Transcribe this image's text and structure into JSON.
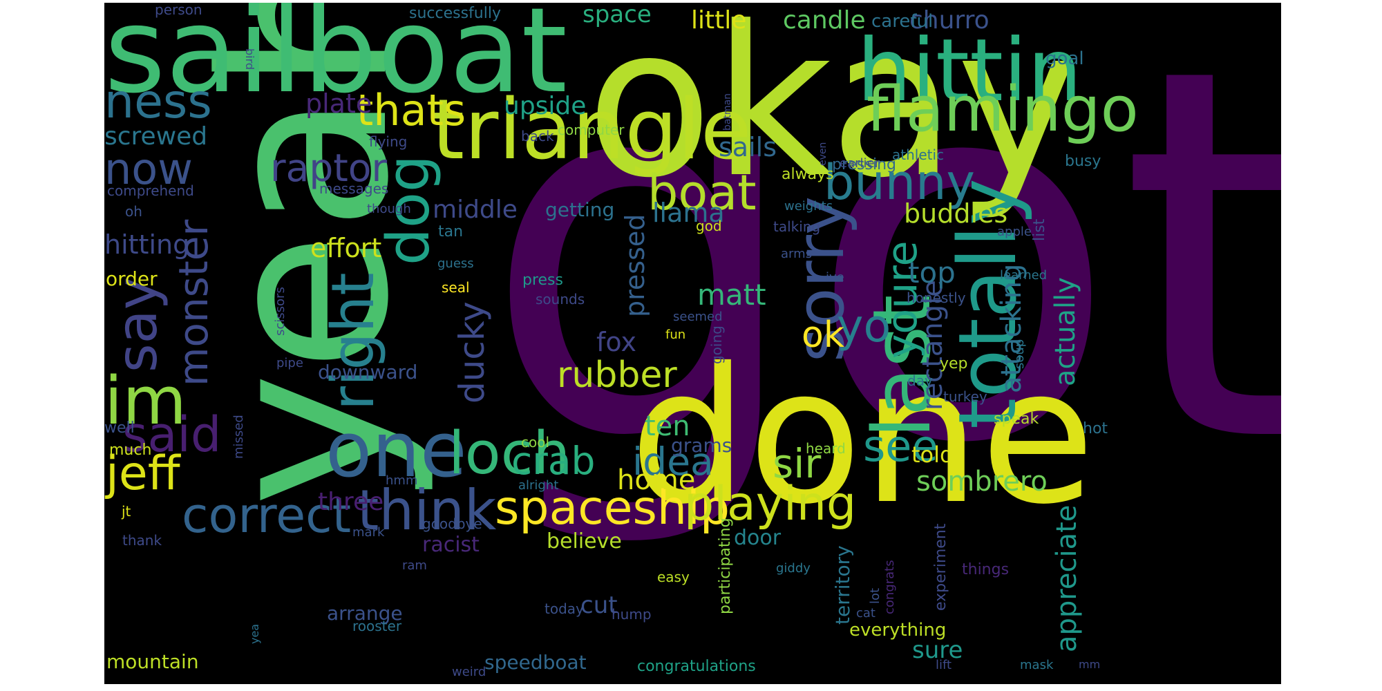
{
  "palette": [
    "#440154",
    "#3b528b",
    "#21918c",
    "#5ec962",
    "#fde725"
  ],
  "words": [
    {
      "text": "got",
      "size": 740,
      "color": "#440154",
      "rot": 0
    },
    {
      "text": "okay",
      "size": 300,
      "color": "#b5de2b",
      "rot": 0
    },
    {
      "text": "yeah",
      "size": 330,
      "color": "#4ac16d",
      "rot": -90
    },
    {
      "text": "done",
      "size": 270,
      "color": "#dde318",
      "rot": 0
    },
    {
      "text": "sailboat",
      "size": 170,
      "color": "#3fbc73",
      "rot": 0
    },
    {
      "text": "hittin",
      "size": 125,
      "color": "#2ab07f",
      "rot": 0
    },
    {
      "text": "triangle",
      "size": 120,
      "color": "#bddf26",
      "rot": 0
    },
    {
      "text": "flamingo",
      "size": 90,
      "color": "#6ece58",
      "rot": 0
    },
    {
      "text": "totally",
      "size": 115,
      "color": "#1f9a8a",
      "rot": -90
    },
    {
      "text": "last",
      "size": 115,
      "color": "#35b779",
      "rot": -90
    },
    {
      "text": "one",
      "size": 110,
      "color": "#34618d",
      "rot": 0
    },
    {
      "text": "sorry",
      "size": 95,
      "color": "#3b528b",
      "rot": -90
    },
    {
      "text": "right",
      "size": 85,
      "color": "#27808e",
      "rot": -90
    },
    {
      "text": "dog",
      "size": 85,
      "color": "#1fa287",
      "rot": -90
    },
    {
      "text": "im",
      "size": 95,
      "color": "#8fd744",
      "rot": 0
    },
    {
      "text": "loch",
      "size": 85,
      "color": "#35b779",
      "rot": 0
    },
    {
      "text": "spaceship",
      "size": 68,
      "color": "#fde725",
      "rot": 0
    },
    {
      "text": "playing",
      "size": 68,
      "color": "#cde11d",
      "rot": 0
    },
    {
      "text": "think",
      "size": 80,
      "color": "#3b528b",
      "rot": 0
    },
    {
      "text": "correct",
      "size": 70,
      "color": "#33638d",
      "rot": 0
    },
    {
      "text": "jeff",
      "size": 68,
      "color": "#dde318",
      "rot": 0
    },
    {
      "text": "said",
      "size": 70,
      "color": "#481f70",
      "rot": 0
    },
    {
      "text": "say",
      "size": 80,
      "color": "#414487",
      "rot": -90
    },
    {
      "text": "monster",
      "size": 58,
      "color": "#3e4a89",
      "rot": -90
    },
    {
      "text": "boat",
      "size": 70,
      "color": "#b5de2b",
      "rot": 0
    },
    {
      "text": "bunny",
      "size": 70,
      "color": "#287c8e",
      "rot": 0
    },
    {
      "text": "ness",
      "size": 68,
      "color": "#2c728e",
      "rot": 0
    },
    {
      "text": "now",
      "size": 62,
      "color": "#3b528b",
      "rot": 0
    },
    {
      "text": "thats",
      "size": 62,
      "color": "#dde318",
      "rot": 0
    },
    {
      "text": "raptor",
      "size": 55,
      "color": "#414487",
      "rot": 0
    },
    {
      "text": "youre",
      "size": 60,
      "color": "#1fa287",
      "rot": -90
    },
    {
      "text": "yo",
      "size": 65,
      "color": "#277f8e",
      "rot": 0
    },
    {
      "text": "see",
      "size": 62,
      "color": "#1f988b",
      "rot": 0
    },
    {
      "text": "sir",
      "size": 58,
      "color": "#8fd744",
      "rot": 0
    },
    {
      "text": "idea",
      "size": 55,
      "color": "#2a768e",
      "rot": 0
    },
    {
      "text": "crab",
      "size": 55,
      "color": "#29af7f",
      "rot": 0
    },
    {
      "text": "rubber",
      "size": 52,
      "color": "#bddf26",
      "rot": 0
    },
    {
      "text": "ok",
      "size": 52,
      "color": "#fde725",
      "rot": 0
    },
    {
      "text": "ducky",
      "size": 50,
      "color": "#3e4a89",
      "rot": -90
    },
    {
      "text": "appreciate",
      "size": 40,
      "color": "#1f988b",
      "rot": -90
    },
    {
      "text": "attacking",
      "size": 40,
      "color": "#2c728e",
      "rot": -90
    },
    {
      "text": "actually",
      "size": 40,
      "color": "#1fa287",
      "rot": -90
    },
    {
      "text": "rectangle",
      "size": 40,
      "color": "#3b528b",
      "rot": -90
    },
    {
      "text": "sombrero",
      "size": 40,
      "color": "#6ece58",
      "rot": 0
    },
    {
      "text": "buddies",
      "size": 38,
      "color": "#b5de2b",
      "rot": 0
    },
    {
      "text": "top",
      "size": 42,
      "color": "#2c728e",
      "rot": 0
    },
    {
      "text": "matt",
      "size": 42,
      "color": "#35b779",
      "rot": 0
    },
    {
      "text": "llama",
      "size": 38,
      "color": "#2c728e",
      "rot": 0
    },
    {
      "text": "sails",
      "size": 38,
      "color": "#31688e",
      "rot": 0
    },
    {
      "text": "pressed",
      "size": 38,
      "color": "#35608d",
      "rot": -90
    },
    {
      "text": "fox",
      "size": 38,
      "color": "#414487",
      "rot": 0
    },
    {
      "text": "ten",
      "size": 40,
      "color": "#3fbc73",
      "rot": 0
    },
    {
      "text": "home",
      "size": 40,
      "color": "#dde318",
      "rot": 0
    },
    {
      "text": "effort",
      "size": 38,
      "color": "#cde11d",
      "rot": 0
    },
    {
      "text": "hitting",
      "size": 38,
      "color": "#3e4a89",
      "rot": 0
    },
    {
      "text": "middle",
      "size": 36,
      "color": "#3e4a89",
      "rot": 0
    },
    {
      "text": "upside",
      "size": 36,
      "color": "#1fa287",
      "rot": 0
    },
    {
      "text": "screwed",
      "size": 36,
      "color": "#2a768e",
      "rot": 0
    },
    {
      "text": "plate",
      "size": 38,
      "color": "#482878",
      "rot": 0
    },
    {
      "text": "little",
      "size": 36,
      "color": "#dde318",
      "rot": 0
    },
    {
      "text": "candle",
      "size": 36,
      "color": "#5ec962",
      "rot": 0
    },
    {
      "text": "space",
      "size": 34,
      "color": "#29af7f",
      "rot": 0
    },
    {
      "text": "churro",
      "size": 36,
      "color": "#3b528b",
      "rot": 0
    },
    {
      "text": "careful",
      "size": 26,
      "color": "#2c728e",
      "rot": 0
    },
    {
      "text": "three",
      "size": 36,
      "color": "#481f70",
      "rot": 0
    },
    {
      "text": "cut",
      "size": 34,
      "color": "#3b528b",
      "rot": 0
    },
    {
      "text": "believe",
      "size": 30,
      "color": "#b5de2b",
      "rot": 0
    },
    {
      "text": "told",
      "size": 32,
      "color": "#dde318",
      "rot": 0
    },
    {
      "text": "sure",
      "size": 34,
      "color": "#1f988b",
      "rot": 0
    },
    {
      "text": "door",
      "size": 30,
      "color": "#25858e",
      "rot": 0
    },
    {
      "text": "racist",
      "size": 30,
      "color": "#482878",
      "rot": 0
    },
    {
      "text": "arrange",
      "size": 28,
      "color": "#3b528b",
      "rot": 0
    },
    {
      "text": "mountain",
      "size": 28,
      "color": "#bddf26",
      "rot": 0
    },
    {
      "text": "speedboat",
      "size": 28,
      "color": "#31688e",
      "rot": 0
    },
    {
      "text": "everything",
      "size": 26,
      "color": "#bddf26",
      "rot": 0
    },
    {
      "text": "congratulations",
      "size": 22,
      "color": "#1fa287",
      "rot": 0
    },
    {
      "text": "territory",
      "size": 28,
      "color": "#2a768e",
      "rot": -90
    },
    {
      "text": "experiment",
      "size": 22,
      "color": "#3e4a89",
      "rot": -90
    },
    {
      "text": "participating",
      "size": 22,
      "color": "#8fd744",
      "rot": -90
    },
    {
      "text": "downward",
      "size": 28,
      "color": "#3b528b",
      "rot": 0
    },
    {
      "text": "order",
      "size": 28,
      "color": "#dde318",
      "rot": 0
    },
    {
      "text": "getting",
      "size": 28,
      "color": "#2c728e",
      "rot": 0
    },
    {
      "text": "grams",
      "size": 28,
      "color": "#3b528b",
      "rot": 0
    },
    {
      "text": "speak",
      "size": 22,
      "color": "#b5de2b",
      "rot": 0
    },
    {
      "text": "tan",
      "size": 22,
      "color": "#2a768e",
      "rot": 0
    },
    {
      "text": "pressing",
      "size": 22,
      "color": "#31688e",
      "rot": 0
    },
    {
      "text": "computer",
      "size": 20,
      "color": "#8fd744",
      "rot": 0
    },
    {
      "text": "back",
      "size": 20,
      "color": "#3e4a89",
      "rot": 0
    },
    {
      "text": "successfully",
      "size": 22,
      "color": "#2c728e",
      "rot": 0
    },
    {
      "text": "flying",
      "size": 20,
      "color": "#3e4a89",
      "rot": 0
    },
    {
      "text": "messages",
      "size": 20,
      "color": "#3e4a89",
      "rot": 0
    },
    {
      "text": "comprehend",
      "size": 20,
      "color": "#3e4a89",
      "rot": 0
    },
    {
      "text": "person",
      "size": 20,
      "color": "#3e4a89",
      "rot": 0
    },
    {
      "text": "though",
      "size": 18,
      "color": "#3e4a89",
      "rot": 0
    },
    {
      "text": "oh",
      "size": 20,
      "color": "#3b528b",
      "rot": 0
    },
    {
      "text": "god",
      "size": 20,
      "color": "#cde11d",
      "rot": 0
    },
    {
      "text": "guess",
      "size": 18,
      "color": "#2c728e",
      "rot": 0
    },
    {
      "text": "seal",
      "size": 20,
      "color": "#fde725",
      "rot": 0
    },
    {
      "text": "press",
      "size": 22,
      "color": "#1f988b",
      "rot": 0
    },
    {
      "text": "sounds",
      "size": 20,
      "color": "#3e4a89",
      "rot": 0
    },
    {
      "text": "seemed",
      "size": 18,
      "color": "#3b528b",
      "rot": 0
    },
    {
      "text": "fun",
      "size": 18,
      "color": "#dde318",
      "rot": 0
    },
    {
      "text": "going",
      "size": 20,
      "color": "#3e4a89",
      "rot": -90
    },
    {
      "text": "always",
      "size": 22,
      "color": "#bddf26",
      "rot": 0
    },
    {
      "text": "weights",
      "size": 18,
      "color": "#2c728e",
      "rot": 0
    },
    {
      "text": "talking",
      "size": 20,
      "color": "#3e4a89",
      "rot": 0
    },
    {
      "text": "arms",
      "size": 18,
      "color": "#3b528b",
      "rot": 0
    },
    {
      "text": "earlier",
      "size": 18,
      "color": "#3e4a89",
      "rot": 0
    },
    {
      "text": "athletic",
      "size": 20,
      "color": "#2c728e",
      "rot": 0
    },
    {
      "text": "busy",
      "size": 22,
      "color": "#2a768e",
      "rot": 0
    },
    {
      "text": "goal",
      "size": 26,
      "color": "#2c728e",
      "rot": 0
    },
    {
      "text": "list",
      "size": 22,
      "color": "#3b528b",
      "rot": -90
    },
    {
      "text": "apple",
      "size": 18,
      "color": "#3b528b",
      "rot": 0
    },
    {
      "text": "learned",
      "size": 18,
      "color": "#2a768e",
      "rot": 0
    },
    {
      "text": "honestly",
      "size": 20,
      "color": "#3b528b",
      "rot": 0
    },
    {
      "text": "ive",
      "size": 18,
      "color": "#3b528b",
      "rot": 0
    },
    {
      "text": "soup",
      "size": 18,
      "color": "#2a768e",
      "rot": -90
    },
    {
      "text": "day",
      "size": 20,
      "color": "#2c728e",
      "rot": 0
    },
    {
      "text": "yep",
      "size": 22,
      "color": "#b5de2b",
      "rot": 0
    },
    {
      "text": "turkey",
      "size": 20,
      "color": "#3b528b",
      "rot": 0
    },
    {
      "text": "hot",
      "size": 22,
      "color": "#2c728e",
      "rot": 0
    },
    {
      "text": "heard",
      "size": 20,
      "color": "#8fd744",
      "rot": 0
    },
    {
      "text": "cool",
      "size": 20,
      "color": "#8fd744",
      "rot": 0
    },
    {
      "text": "alright",
      "size": 18,
      "color": "#2c728e",
      "rot": 0
    },
    {
      "text": "hmm",
      "size": 18,
      "color": "#3b528b",
      "rot": 0
    },
    {
      "text": "goodbye",
      "size": 20,
      "color": "#3b528b",
      "rot": 0
    },
    {
      "text": "mark",
      "size": 18,
      "color": "#3b528b",
      "rot": 0
    },
    {
      "text": "ram",
      "size": 18,
      "color": "#3e4a89",
      "rot": 0
    },
    {
      "text": "rooster",
      "size": 20,
      "color": "#2c728e",
      "rot": 0
    },
    {
      "text": "yea",
      "size": 16,
      "color": "#2c728e",
      "rot": -90
    },
    {
      "text": "weird",
      "size": 18,
      "color": "#3e4a89",
      "rot": 0
    },
    {
      "text": "today",
      "size": 20,
      "color": "#3b528b",
      "rot": 0
    },
    {
      "text": "hump",
      "size": 20,
      "color": "#3e4a89",
      "rot": 0
    },
    {
      "text": "easy",
      "size": 20,
      "color": "#bddf26",
      "rot": 0
    },
    {
      "text": "giddy",
      "size": 18,
      "color": "#2a768e",
      "rot": 0
    },
    {
      "text": "lot",
      "size": 18,
      "color": "#3b528b",
      "rot": -90
    },
    {
      "text": "congrats",
      "size": 18,
      "color": "#482878",
      "rot": -90
    },
    {
      "text": "cat",
      "size": 18,
      "color": "#3b528b",
      "rot": 0
    },
    {
      "text": "lift",
      "size": 18,
      "color": "#3e4a89",
      "rot": 0
    },
    {
      "text": "things",
      "size": 22,
      "color": "#482878",
      "rot": 0
    },
    {
      "text": "mask",
      "size": 18,
      "color": "#2a768e",
      "rot": 0
    },
    {
      "text": "mm",
      "size": 16,
      "color": "#3e4a89",
      "rot": 0
    },
    {
      "text": "well",
      "size": 22,
      "color": "#3b528b",
      "rot": 0
    },
    {
      "text": "much",
      "size": 22,
      "color": "#cde11d",
      "rot": 0
    },
    {
      "text": "missed",
      "size": 18,
      "color": "#3e4a89",
      "rot": -90
    },
    {
      "text": "jt",
      "size": 20,
      "color": "#dde318",
      "rot": 0
    },
    {
      "text": "thank",
      "size": 20,
      "color": "#3e4a89",
      "rot": 0
    },
    {
      "text": "pipe",
      "size": 18,
      "color": "#3e4a89",
      "rot": 0
    },
    {
      "text": "scissors",
      "size": 18,
      "color": "#3e4a89",
      "rot": -90
    },
    {
      "text": "bird",
      "size": 16,
      "color": "#3e4a89",
      "rot": 90
    },
    {
      "text": "batman",
      "size": 14,
      "color": "#3e4a89",
      "rot": -90
    },
    {
      "text": "even",
      "size": 14,
      "color": "#3e4a89",
      "rot": -90
    }
  ]
}
